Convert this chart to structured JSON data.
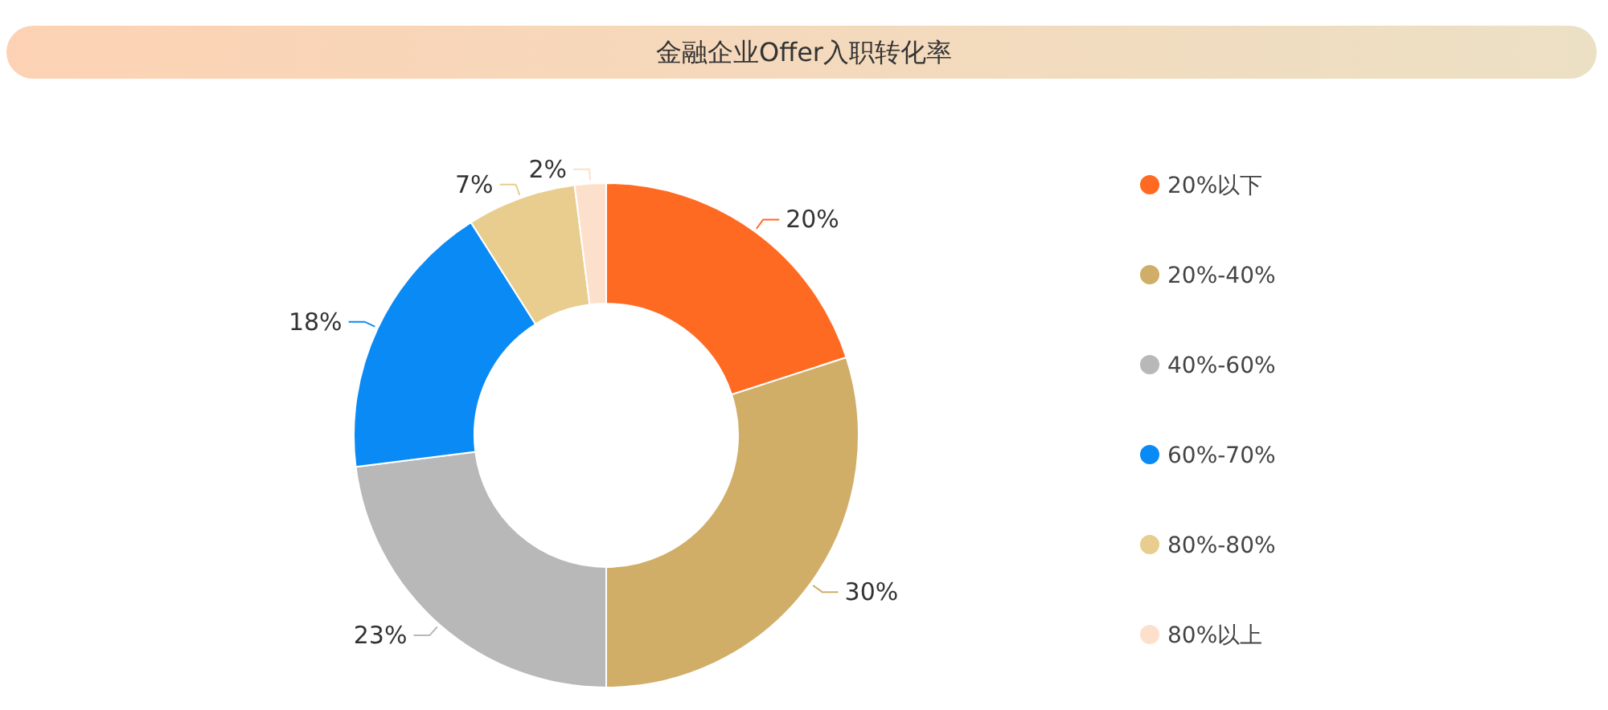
{
  "chart_data": {
    "type": "donut",
    "title": "金融企业Offer入职转化率",
    "categories": [
      "20%以下",
      "20%-40%",
      "40%-60%",
      "60%-70%",
      "80%-80%",
      "80%以上"
    ],
    "values": [
      20,
      30,
      23,
      18,
      7,
      2
    ],
    "value_labels": [
      "20%",
      "30%",
      "23%",
      "18%",
      "7%",
      "2%"
    ],
    "colors": [
      "#ff6a22",
      "#d0ae68",
      "#b8b8b8",
      "#0a8af5",
      "#e8cd8e",
      "#fde0cc"
    ],
    "legend": "right"
  }
}
